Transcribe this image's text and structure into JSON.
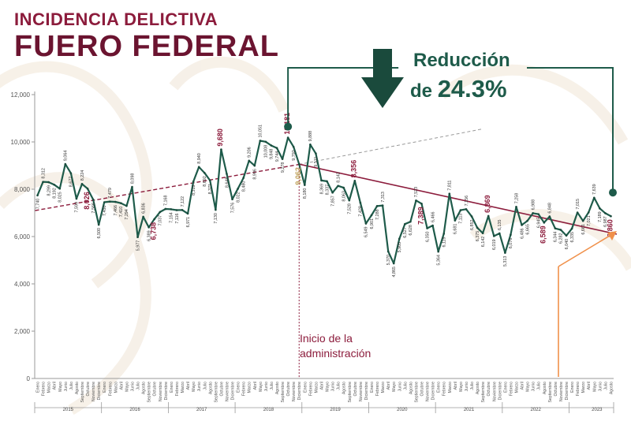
{
  "header": {
    "title_line1": "INCIDENCIA DELICTIVA",
    "title_line2": "FUERO FEDERAL",
    "reduction_line1": "Reducción",
    "reduction_prefix": "de ",
    "reduction_value": "24.3%"
  },
  "annotation": {
    "line1": "Inicio de la",
    "line2": "administración"
  },
  "colors": {
    "burgundy": "#8c1c3c",
    "green": "#1e5b4a",
    "gold": "#bfa25a",
    "orange": "#f0904a",
    "line": "#1a4a3c"
  },
  "chart_data": {
    "type": "line",
    "ylim": [
      0,
      12000
    ],
    "yticks": [
      "0",
      "2,000",
      "4,000",
      "6,000",
      "8,000",
      "10,000",
      "12,000"
    ],
    "month_labels": [
      "Enero",
      "Febrero",
      "Marzo",
      "Abril",
      "Mayo",
      "Junio",
      "Julio",
      "Agosto",
      "Septiembre",
      "Octubre",
      "Noviembre",
      "Diciembre"
    ],
    "years": [
      "2015",
      "2016",
      "2017",
      "2018",
      "2019",
      "2020",
      "2021",
      "2022",
      "2023"
    ],
    "months_in_last_year": 10,
    "series": [
      {
        "values": [
          7740,
          8312,
          8299,
          8192,
          8025,
          9064,
          8677,
          7599,
          8224,
          8026,
          7566,
          6500,
          7450,
          7479,
          7466,
          7410,
          7294,
          8098,
          5977,
          6836,
          6389,
          6738,
          7037,
          7168,
          7154,
          7116,
          7122,
          6971,
          8319,
          8940,
          8692,
          8371,
          7130,
          9680,
          8648,
          7576,
          8022,
          8480,
          9206,
          8996,
          10051,
          10008,
          9848,
          9744,
          9278,
          10181,
          9792,
          9062,
          8180,
          9888,
          9511,
          8369,
          8337,
          7857,
          8142,
          8063,
          7528,
          8356,
          7428,
          6549,
          6901,
          7288,
          7313,
          5370,
          4865,
          5905,
          6527,
          6628,
          7523,
          7389,
          6350,
          6466,
          5364,
          6119,
          7811,
          6681,
          7113,
          7156,
          6852,
          6375,
          6142,
          6869,
          6019,
          6135,
          5313,
          6076,
          7258,
          6486,
          6665,
          6988,
          6945,
          6589,
          6848,
          6344,
          6282,
          6040,
          6335,
          7015,
          6661,
          7021,
          7639,
          7189,
          6987,
          6860
        ]
      }
    ],
    "annotations": [
      {
        "label": "6,738",
        "value": 6738
      },
      {
        "label": "9,680",
        "value": 9680
      },
      {
        "label": "10,181",
        "value": 10181
      },
      {
        "label": "9,062",
        "value": 9062
      },
      {
        "label": "8,356",
        "value": 8356
      },
      {
        "label": "7,389",
        "value": 7389
      },
      {
        "label": "6,869",
        "value": 6869
      },
      {
        "label": "6,589",
        "value": 6589
      },
      {
        "label": "6,860",
        "value": 6860
      },
      {
        "label": "8,026",
        "value": 8026
      }
    ],
    "trend_pre": [
      7100,
      9050
    ],
    "trend_post": [
      9062,
      6100
    ]
  }
}
